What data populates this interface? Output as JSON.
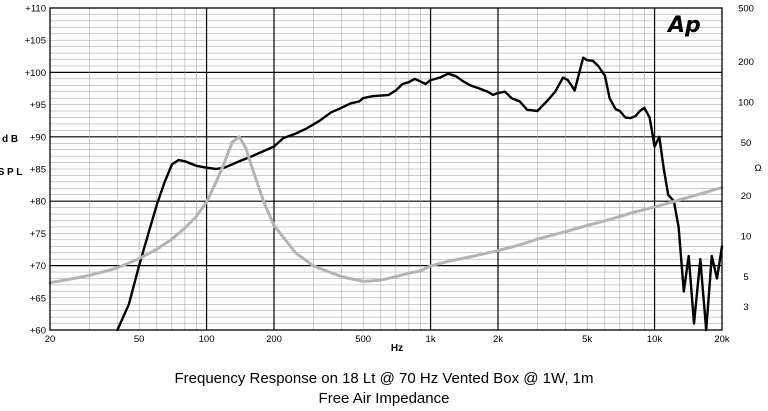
{
  "caption": {
    "line1": "Frequency Response on 18 Lt @ 70 Hz Vented Box @ 1W, 1m",
    "line2": "Free Air Impedance"
  },
  "logo_text": "Ap",
  "chart_data": {
    "type": "line",
    "xscale": "log",
    "xlim": [
      20,
      20000
    ],
    "xlabel": "Hz",
    "x_ticks": [
      {
        "value": 20,
        "label": "20"
      },
      {
        "value": 50,
        "label": "50"
      },
      {
        "value": 100,
        "label": "100"
      },
      {
        "value": 200,
        "label": "200"
      },
      {
        "value": 500,
        "label": "500"
      },
      {
        "value": 1000,
        "label": "1k"
      },
      {
        "value": 2000,
        "label": "2k"
      },
      {
        "value": 5000,
        "label": "5k"
      },
      {
        "value": 10000,
        "label": "10k"
      },
      {
        "value": 20000,
        "label": "20k"
      }
    ],
    "ylabel": "dB SPL",
    "ylim": [
      60,
      110
    ],
    "y_ticks": [
      {
        "value": 110,
        "label": "+110"
      },
      {
        "value": 105,
        "label": "+105"
      },
      {
        "value": 100,
        "label": "+100"
      },
      {
        "value": 95,
        "label": "+95"
      },
      {
        "value": 90,
        "label": "+90"
      },
      {
        "value": 85,
        "label": "+85"
      },
      {
        "value": 80,
        "label": "+80"
      },
      {
        "value": 75,
        "label": "+75"
      },
      {
        "value": 70,
        "label": "+70"
      },
      {
        "value": 65,
        "label": "+65"
      },
      {
        "value": 60,
        "label": "+60"
      }
    ],
    "y2label": "Ω",
    "y2scale": "log",
    "y2lim": [
      2,
      500
    ],
    "y2_ticks": [
      {
        "value": 500,
        "label": "500"
      },
      {
        "value": 200,
        "label": "200"
      },
      {
        "value": 100,
        "label": "100"
      },
      {
        "value": 50,
        "label": "50"
      },
      {
        "value": 20,
        "label": "20"
      },
      {
        "value": 10,
        "label": "10"
      },
      {
        "value": 5,
        "label": "5"
      },
      {
        "value": 3,
        "label": "3"
      }
    ],
    "grid": true,
    "series": [
      {
        "color": "#000000",
        "axis": "left",
        "points": [
          [
            40,
            60
          ],
          [
            45,
            64
          ],
          [
            50,
            70
          ],
          [
            55,
            75
          ],
          [
            60,
            79.5
          ],
          [
            65,
            83
          ],
          [
            70,
            85.7
          ],
          [
            75,
            86.4
          ],
          [
            80,
            86.2
          ],
          [
            90,
            85.5
          ],
          [
            100,
            85.2
          ],
          [
            110,
            85
          ],
          [
            120,
            85.2
          ],
          [
            140,
            86.2
          ],
          [
            160,
            87
          ],
          [
            180,
            87.8
          ],
          [
            200,
            88.5
          ],
          [
            220,
            89.8
          ],
          [
            250,
            90.5
          ],
          [
            280,
            91.3
          ],
          [
            320,
            92.5
          ],
          [
            360,
            93.8
          ],
          [
            400,
            94.5
          ],
          [
            440,
            95.2
          ],
          [
            480,
            95.5
          ],
          [
            500,
            96
          ],
          [
            550,
            96.3
          ],
          [
            600,
            96.4
          ],
          [
            650,
            96.5
          ],
          [
            700,
            97.2
          ],
          [
            750,
            98.2
          ],
          [
            800,
            98.5
          ],
          [
            850,
            99
          ],
          [
            900,
            98.6
          ],
          [
            950,
            98.2
          ],
          [
            1000,
            98.8
          ],
          [
            1100,
            99.2
          ],
          [
            1200,
            99.8
          ],
          [
            1300,
            99.4
          ],
          [
            1400,
            98.6
          ],
          [
            1500,
            98
          ],
          [
            1650,
            97.5
          ],
          [
            1800,
            97
          ],
          [
            1900,
            96.5
          ],
          [
            2000,
            96.8
          ],
          [
            2150,
            97
          ],
          [
            2300,
            96
          ],
          [
            2500,
            95.5
          ],
          [
            2700,
            94.2
          ],
          [
            3000,
            94
          ],
          [
            3300,
            95.5
          ],
          [
            3600,
            97
          ],
          [
            3900,
            99.2
          ],
          [
            4100,
            98.8
          ],
          [
            4400,
            97.2
          ],
          [
            4600,
            99.8
          ],
          [
            4800,
            102.3
          ],
          [
            5000,
            101.9
          ],
          [
            5300,
            101.8
          ],
          [
            5600,
            101
          ],
          [
            6000,
            99.5
          ],
          [
            6300,
            96
          ],
          [
            6700,
            94.3
          ],
          [
            7000,
            94
          ],
          [
            7400,
            93
          ],
          [
            7800,
            92.9
          ],
          [
            8200,
            93.2
          ],
          [
            8600,
            94
          ],
          [
            9000,
            94.5
          ],
          [
            9500,
            93
          ],
          [
            10000,
            88.5
          ],
          [
            10500,
            90
          ],
          [
            11000,
            85
          ],
          [
            11500,
            81
          ],
          [
            12200,
            80
          ],
          [
            12800,
            76
          ],
          [
            13500,
            66
          ],
          [
            14200,
            71.5
          ],
          [
            15000,
            61
          ],
          [
            16000,
            71
          ],
          [
            17000,
            60
          ],
          [
            18000,
            71.5
          ],
          [
            19000,
            68
          ],
          [
            20000,
            73
          ]
        ]
      },
      {
        "color": "#b4b4b4",
        "axis": "right",
        "points": [
          [
            20,
            4.5
          ],
          [
            25,
            4.8
          ],
          [
            30,
            5.1
          ],
          [
            40,
            5.8
          ],
          [
            50,
            6.8
          ],
          [
            60,
            8
          ],
          [
            70,
            9.5
          ],
          [
            80,
            11.5
          ],
          [
            90,
            14
          ],
          [
            100,
            18
          ],
          [
            110,
            25
          ],
          [
            120,
            35
          ],
          [
            130,
            50
          ],
          [
            140,
            55
          ],
          [
            150,
            45
          ],
          [
            160,
            32
          ],
          [
            180,
            18
          ],
          [
            200,
            12
          ],
          [
            250,
            7.5
          ],
          [
            300,
            6
          ],
          [
            400,
            5
          ],
          [
            500,
            4.6
          ],
          [
            600,
            4.7
          ],
          [
            700,
            5
          ],
          [
            800,
            5.3
          ],
          [
            900,
            5.5
          ],
          [
            1000,
            6
          ],
          [
            1200,
            6.5
          ],
          [
            1500,
            7
          ],
          [
            2000,
            7.8
          ],
          [
            2500,
            8.6
          ],
          [
            3000,
            9.5
          ],
          [
            4000,
            10.8
          ],
          [
            5000,
            12
          ],
          [
            6000,
            13
          ],
          [
            7000,
            14
          ],
          [
            8000,
            15
          ],
          [
            10000,
            16.5
          ],
          [
            12000,
            18
          ],
          [
            15000,
            20
          ],
          [
            20000,
            23
          ]
        ]
      }
    ]
  }
}
